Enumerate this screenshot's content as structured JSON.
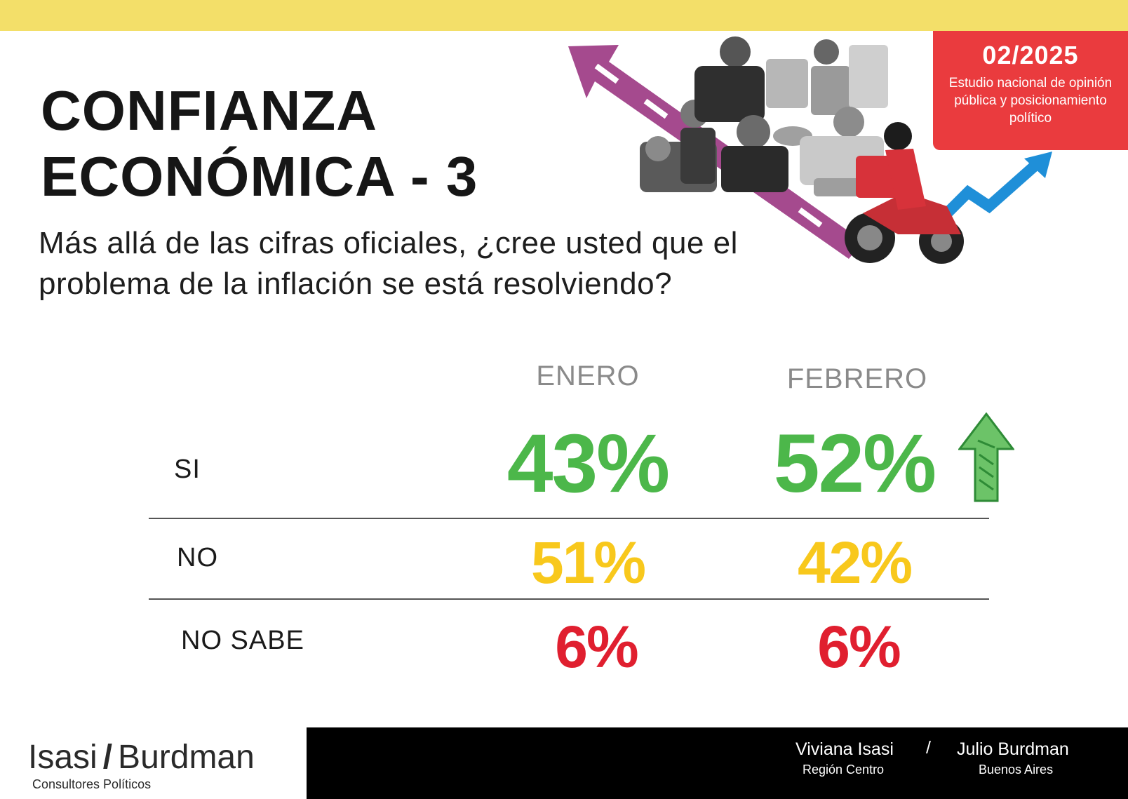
{
  "header": {
    "title_line1": "CONFIANZA",
    "title_line2": "ECONÓMICA - 3",
    "question": "Más allá de las cifras oficiales, ¿cree usted que el problema de la inflación se está resolviendo?"
  },
  "badge": {
    "date": "02/2025",
    "subtitle": "Estudio nacional de opinión pública y posicionamiento político"
  },
  "colors": {
    "top_bar": "#f3df69",
    "badge": "#ea3b3e",
    "si": "#4cb74a",
    "no": "#f8c81c",
    "no_sabe": "#e01f2f",
    "column_header": "#8a8a8a"
  },
  "chart_data": {
    "type": "table",
    "columns": [
      "ENERO",
      "FEBRERO"
    ],
    "rows": [
      {
        "label": "SI",
        "values": [
          "43%",
          "52%"
        ],
        "color": "#4cb74a",
        "trend_icon": "up-arrow-icon"
      },
      {
        "label": "NO",
        "values": [
          "51%",
          "42%"
        ],
        "color": "#f8c81c"
      },
      {
        "label": "NO SABE",
        "values": [
          "6%",
          "6%"
        ],
        "color": "#e01f2f"
      }
    ]
  },
  "footer": {
    "logo_left": "Isasi",
    "logo_slash": "/",
    "logo_right": "Burdman",
    "logo_sub": "Consultores Políticos",
    "person1_name": "Viviana Isasi",
    "person1_place": "Región Centro",
    "separator": "/",
    "person2_name": "Julio Burdman",
    "person2_place": "Buenos Aires"
  }
}
